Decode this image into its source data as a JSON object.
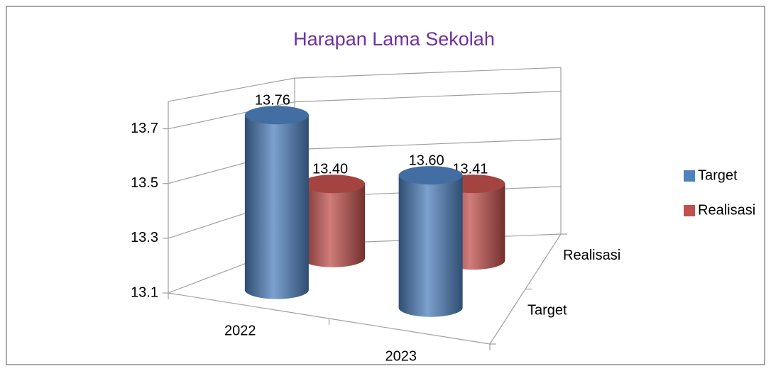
{
  "chart_data": {
    "type": "bar3d",
    "title": "Harapan Lama Sekolah",
    "categories": [
      "2022",
      "2023"
    ],
    "series": [
      {
        "name": "Target",
        "color": "#4f81bd",
        "values": [
          13.76,
          13.6
        ],
        "value_labels": [
          "13.76",
          "13.60"
        ]
      },
      {
        "name": "Realisasi",
        "color": "#c0504d",
        "values": [
          13.4,
          13.41
        ],
        "value_labels": [
          "13.40",
          "13.41"
        ]
      }
    ],
    "ylim": [
      13.1,
      13.8
    ],
    "yticks": [
      13.1,
      13.3,
      13.5,
      13.7
    ],
    "grid": true,
    "legend": "right"
  }
}
